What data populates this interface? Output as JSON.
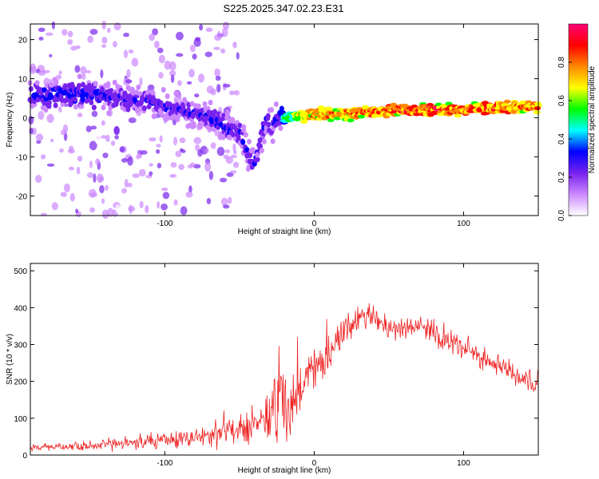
{
  "title": "S225.2025.347.02.23.E31",
  "colors": {
    "snr_line": "#ee2222",
    "axis": "#000000"
  },
  "chart_data": [
    {
      "type": "heatmap",
      "xlabel": "Height of straight line (km)",
      "ylabel": "Frequency (Hz)",
      "xlim": [
        -190,
        150
      ],
      "ylim": [
        -25,
        24
      ],
      "xticks": [
        -100,
        0,
        100
      ],
      "yticks": [
        -20,
        -10,
        0,
        10,
        20
      ],
      "colorbar": {
        "label": "Normalized spectral amplitude",
        "range": [
          0,
          1
        ],
        "ticks": [
          0.0,
          0.2,
          0.4,
          0.6,
          0.8
        ],
        "tick_labels": [
          "0.0",
          "0.2",
          "0.4",
          "0.6",
          "0.8"
        ],
        "colormap": [
          "#ffffff",
          "#cc88ff",
          "#7722ee",
          "#0000ff",
          "#00ffff",
          "#00ff00",
          "#ffff00",
          "#ff8800",
          "#ff0000",
          "#ff0077"
        ]
      },
      "ridge": {
        "x": [
          -150,
          -130,
          -110,
          -90,
          -80,
          -70,
          -60,
          -50,
          -45,
          -40,
          -36,
          -32,
          -28,
          -24,
          -20,
          -10,
          0,
          20,
          40,
          60,
          80,
          100,
          120,
          140,
          150
        ],
        "freq": [
          6,
          5,
          4,
          2,
          1,
          0,
          -2,
          -4,
          -8,
          -12,
          -6,
          0,
          -2,
          1,
          0,
          0.5,
          1,
          1,
          1.5,
          2,
          2,
          2,
          2.5,
          3,
          3
        ],
        "peak_amplitude": [
          0.35,
          0.3,
          0.3,
          0.3,
          0.3,
          0.3,
          0.35,
          0.3,
          0.3,
          0.3,
          0.3,
          0.3,
          0.3,
          0.35,
          0.5,
          0.7,
          0.8,
          0.8,
          0.85,
          0.9,
          0.9,
          0.9,
          0.9,
          0.85,
          0.8
        ]
      }
    },
    {
      "type": "line",
      "xlabel": "Height of straight line (km)",
      "ylabel": "SNR (10 * v/v)",
      "xlim": [
        -190,
        150
      ],
      "ylim": [
        0,
        520
      ],
      "xticks": [
        -100,
        0,
        100
      ],
      "yticks": [
        0,
        100,
        200,
        300,
        400,
        500
      ],
      "series": [
        {
          "name": "SNR",
          "color": "#ee2222",
          "x": [
            -190,
            -170,
            -150,
            -130,
            -110,
            -90,
            -80,
            -70,
            -60,
            -50,
            -40,
            -30,
            -25,
            -22,
            -20,
            -15,
            -10,
            -5,
            0,
            5,
            10,
            15,
            20,
            25,
            30,
            35,
            40,
            50,
            60,
            70,
            80,
            90,
            100,
            110,
            120,
            130,
            140,
            150
          ],
          "mean": [
            20,
            22,
            25,
            30,
            35,
            42,
            48,
            55,
            62,
            75,
            90,
            110,
            150,
            160,
            150,
            120,
            150,
            220,
            240,
            250,
            270,
            300,
            330,
            360,
            375,
            385,
            370,
            345,
            340,
            350,
            330,
            310,
            290,
            270,
            250,
            230,
            200,
            180
          ],
          "spread": [
            10,
            10,
            12,
            15,
            18,
            22,
            25,
            30,
            35,
            45,
            55,
            70,
            150,
            120,
            100,
            80,
            70,
            60,
            45,
            45,
            40,
            40,
            40,
            40,
            40,
            35,
            35,
            30,
            30,
            30,
            30,
            30,
            30,
            28,
            28,
            28,
            28,
            28
          ]
        }
      ]
    }
  ]
}
